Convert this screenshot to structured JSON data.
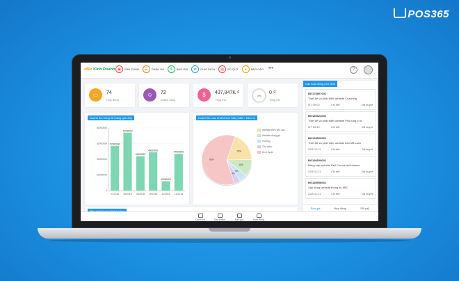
{
  "brand": {
    "name": "POS365"
  },
  "app": {
    "logo_prefix": "eBiz",
    "logo_name": "Kinh Doanh"
  },
  "menu": [
    {
      "label": "SẢN PHẨM",
      "icon": "box-icon",
      "color": "#e74c3c"
    },
    {
      "label": "DANH BẠ",
      "icon": "contacts-icon",
      "color": "#e67e22"
    },
    {
      "label": "BÁO GIÁ",
      "icon": "quote-icon",
      "color": "#27ae60"
    },
    {
      "label": "GIAO DỊCH",
      "icon": "transaction-icon",
      "color": "#3498db"
    },
    {
      "label": "SỔ QUỸ",
      "icon": "cashbook-icon",
      "color": "#e74c3c"
    },
    {
      "label": "BÁO CÁO",
      "icon": "report-icon",
      "color": "#f39c12"
    }
  ],
  "more_label": "•••",
  "help_label": "?",
  "stats": [
    {
      "value": "74",
      "label": "Hợp đồng",
      "color": "#f5a623",
      "icon": "folder-icon"
    },
    {
      "value": "72",
      "label": "Khách hàng",
      "color": "#9b59b6",
      "icon": "users-icon"
    },
    {
      "value": "437,847K ₫",
      "label": "Tổng thu",
      "color": "#f06292",
      "icon": "income-icon"
    },
    {
      "value": "0 ₫",
      "label": "Tổng Chi",
      "color": "#9e9e9e",
      "icon": "expense-icon",
      "ring": "0%"
    }
  ],
  "panels": {
    "revenue_title": "Doanh thu trong 06 tháng gần đây",
    "pie_title": "Doanh thu cao nhất nhóm Sản phẩm / Dịch vụ",
    "bottom_title": "Tiến phải thu từ Khách hàng"
  },
  "chart_data": [
    {
      "type": "bar",
      "categories": [
        "07/2018",
        "08/2018",
        "09/2018",
        "10/2018",
        "11/2018",
        "12/2018"
      ],
      "values": [
        57000000,
        74000000,
        44000000,
        49000000,
        12000000,
        47000000
      ],
      "value_labels": [
        "57000000",
        "74000000",
        "44000000",
        "49000000",
        "12000000",
        "47000000"
      ],
      "y_ticks": [
        "80000000",
        "60000000",
        "40000000",
        "20000000",
        "0"
      ],
      "ylim": [
        0,
        80000000
      ],
      "color": "#7ed6b2"
    },
    {
      "type": "pie",
      "labels": [
        "Website theo yêu cầu",
        "Website đóng gói",
        "Hosting",
        "Tên miền",
        "Dịch thuật"
      ],
      "values": [
        19,
        11,
        5,
        4,
        60
      ],
      "display": [
        "19%",
        "11%",
        "5%",
        "4%",
        "60%"
      ],
      "colors": [
        "#f7e2a8",
        "#cce8c4",
        "#c9e5f5",
        "#d9cdf0",
        "#f6c6c6"
      ],
      "legend": "right"
    }
  ],
  "activity": {
    "title": "Các hoạt động mới nhất",
    "items": [
      {
        "code": "BG170807001",
        "desc": "Thiết kế và phát triển website Coaching",
        "date": "5/7 09:02",
        "status1": "Chi tiết",
        "status2": "Đã duyệt"
      },
      {
        "code": "BG180624001",
        "desc": "Thiết kế và phát triển website Phụ tùng ô tô",
        "date": "5/7 13:40",
        "status1": "Chi tiết",
        "status2": "Đã duyệt"
      },
      {
        "code": "BG190520001",
        "desc": "Thiết kế và phát triển website bán Mã vạch",
        "date": "22/5 11:11",
        "status1": "Chi tiết",
        "status2": "Đã duyệt"
      },
      {
        "code": "BG190520001",
        "desc": "Nâng cấp website Dell Curone dell.domen",
        "date": "22/5 11:11",
        "status1": "Chi tiết",
        "status2": "Đã duyệt"
      },
      {
        "code": "BG180508001",
        "desc": "Xây dựng website thông tin ABC",
        "date": "22/5 11:11",
        "status1": "Chi tiết",
        "status2": "Đã duyệt"
      }
    ],
    "tabs": [
      "Báo giá",
      "Hợp đồng",
      "Sổ quỹ"
    ]
  },
  "bottom_nav": [
    {
      "label": "Danh bạ",
      "icon": "contacts-icon"
    },
    {
      "label": "Sản phẩm",
      "icon": "box-icon"
    },
    {
      "label": "Báo giá",
      "icon": "quote-icon"
    },
    {
      "label": "Hợp đồng",
      "icon": "contract-icon"
    }
  ]
}
